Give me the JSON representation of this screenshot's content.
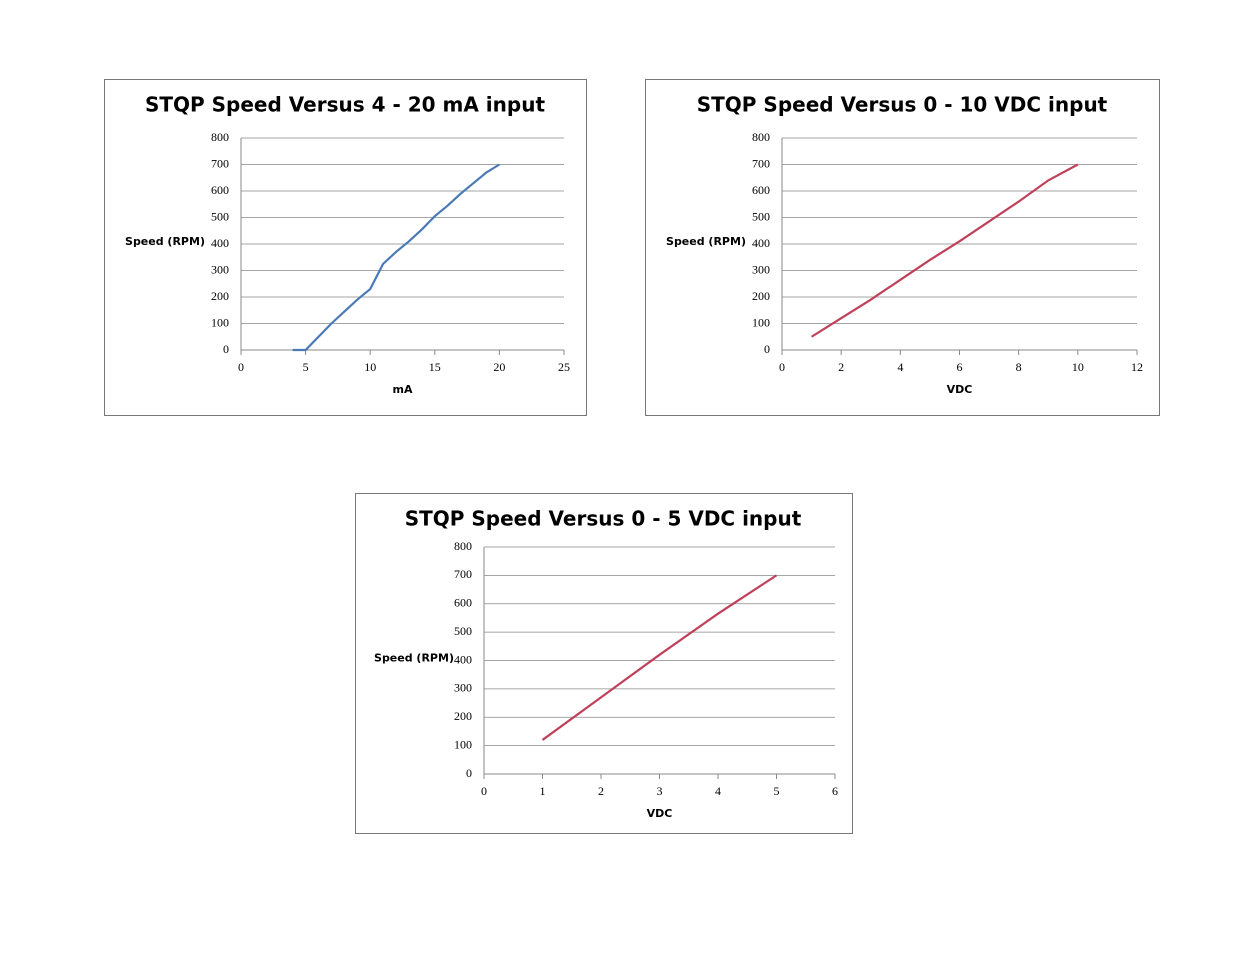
{
  "chart_data": [
    {
      "type": "line",
      "title": "STQP Speed Versus 4 - 20 mA input",
      "y_label": "Speed (RPM)",
      "x_label": "mA",
      "x": [
        4,
        5,
        6,
        7,
        8,
        9,
        10,
        11,
        12,
        13,
        14,
        15,
        16,
        17,
        18,
        19,
        20
      ],
      "series": [
        {
          "name": "Speed",
          "color": "#4a7ab5",
          "values": [
            0,
            0,
            50,
            100,
            145,
            190,
            230,
            325,
            370,
            410,
            455,
            505,
            545,
            590,
            630,
            670,
            700
          ]
        }
      ],
      "xlim": [
        0,
        25
      ],
      "xticks": [
        0,
        5,
        10,
        15,
        20,
        25
      ],
      "ylim": [
        0,
        800
      ],
      "yticks": [
        0,
        100,
        200,
        300,
        400,
        500,
        600,
        700,
        800
      ],
      "grid": true
    },
    {
      "type": "line",
      "title": "STQP Speed Versus 0 - 10 VDC input",
      "y_label": "Speed (RPM)",
      "x_label": "VDC",
      "x": [
        1,
        2,
        3,
        4,
        5,
        6,
        7,
        8,
        9,
        10
      ],
      "series": [
        {
          "name": "Speed",
          "color": "#c0405a",
          "values": [
            50,
            120,
            190,
            265,
            340,
            410,
            485,
            560,
            640,
            700
          ]
        }
      ],
      "xlim": [
        0,
        12
      ],
      "xticks": [
        0,
        2,
        4,
        6,
        8,
        10,
        12
      ],
      "ylim": [
        0,
        800
      ],
      "yticks": [
        0,
        100,
        200,
        300,
        400,
        500,
        600,
        700,
        800
      ],
      "grid": true
    },
    {
      "type": "line",
      "title": "STQP Speed Versus 0 - 5 VDC input",
      "y_label": "Speed (RPM)",
      "x_label": "VDC",
      "x": [
        1,
        2,
        3,
        4,
        5
      ],
      "series": [
        {
          "name": "Speed",
          "color": "#c0405a",
          "values": [
            120,
            270,
            420,
            565,
            700
          ]
        }
      ],
      "xlim": [
        0,
        6
      ],
      "xticks": [
        0,
        1,
        2,
        3,
        4,
        5,
        6
      ],
      "ylim": [
        0,
        800
      ],
      "yticks": [
        0,
        100,
        200,
        300,
        400,
        500,
        600,
        700,
        800
      ],
      "grid": true
    }
  ]
}
